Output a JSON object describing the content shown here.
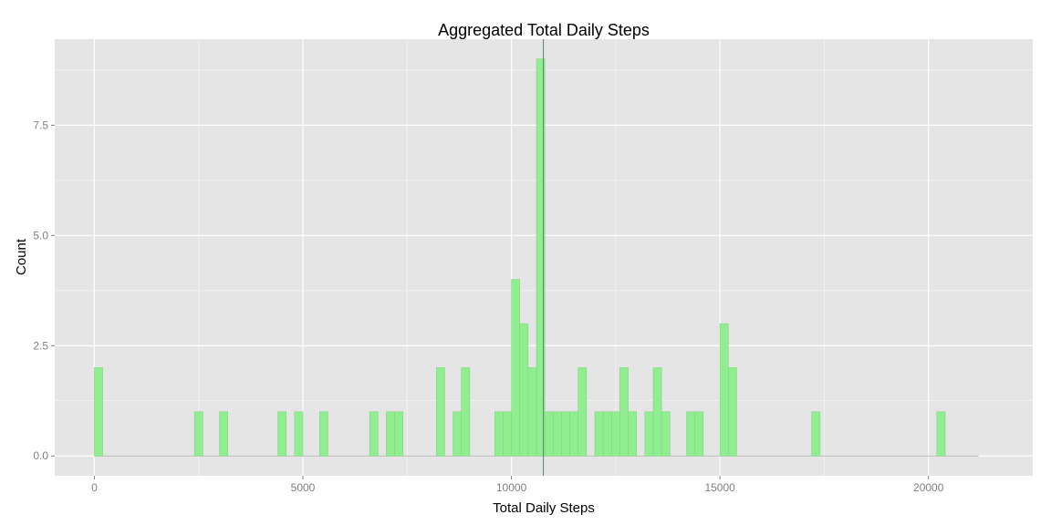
{
  "chart_data": {
    "type": "bar",
    "title": "Aggregated Total Daily Steps",
    "xlabel": "Total Daily Steps",
    "ylabel": "Count",
    "xlim": [
      -950,
      22500
    ],
    "ylim": [
      -0.45,
      9.45
    ],
    "x_ticks": [
      0,
      5000,
      10000,
      15000,
      20000
    ],
    "x_tick_labels": [
      "0",
      "5000",
      "10000",
      "15000",
      "20000"
    ],
    "y_ticks": [
      0,
      2.5,
      5,
      7.5
    ],
    "y_tick_labels": [
      "0.0",
      "2.5",
      "5.0",
      "7.5"
    ],
    "bin_width": 200,
    "bins_start": 0,
    "bins_end": 21200,
    "bins": [
      {
        "x": 100,
        "count": 2
      },
      {
        "x": 2500,
        "count": 1
      },
      {
        "x": 3100,
        "count": 1
      },
      {
        "x": 4500,
        "count": 1
      },
      {
        "x": 4900,
        "count": 1
      },
      {
        "x": 5500,
        "count": 1
      },
      {
        "x": 6700,
        "count": 1
      },
      {
        "x": 7100,
        "count": 1
      },
      {
        "x": 7300,
        "count": 1
      },
      {
        "x": 8300,
        "count": 2
      },
      {
        "x": 8700,
        "count": 1
      },
      {
        "x": 8900,
        "count": 2
      },
      {
        "x": 9700,
        "count": 1
      },
      {
        "x": 9900,
        "count": 1
      },
      {
        "x": 10100,
        "count": 4
      },
      {
        "x": 10300,
        "count": 3
      },
      {
        "x": 10500,
        "count": 2
      },
      {
        "x": 10700,
        "count": 9
      },
      {
        "x": 10900,
        "count": 1
      },
      {
        "x": 11100,
        "count": 1
      },
      {
        "x": 11300,
        "count": 1
      },
      {
        "x": 11500,
        "count": 1
      },
      {
        "x": 11700,
        "count": 2
      },
      {
        "x": 12100,
        "count": 1
      },
      {
        "x": 12300,
        "count": 1
      },
      {
        "x": 12500,
        "count": 1
      },
      {
        "x": 12700,
        "count": 2
      },
      {
        "x": 12900,
        "count": 1
      },
      {
        "x": 13300,
        "count": 1
      },
      {
        "x": 13500,
        "count": 2
      },
      {
        "x": 13700,
        "count": 1
      },
      {
        "x": 14300,
        "count": 1
      },
      {
        "x": 14500,
        "count": 1
      },
      {
        "x": 15100,
        "count": 3
      },
      {
        "x": 15300,
        "count": 2
      },
      {
        "x": 17300,
        "count": 1
      },
      {
        "x": 20300,
        "count": 1
      }
    ],
    "vline_x": 10766,
    "grid": true,
    "colors": {
      "panel": "#e5e5e5",
      "grid_major": "#ffffff",
      "grid_minor": "#f2f2f2",
      "bar_fill": "#90ee90",
      "bar_stroke": "#7fd67f",
      "baseline": "#b3b3b3",
      "vline": "#5f7f7a",
      "tick_label": "#7f7f7f"
    }
  }
}
